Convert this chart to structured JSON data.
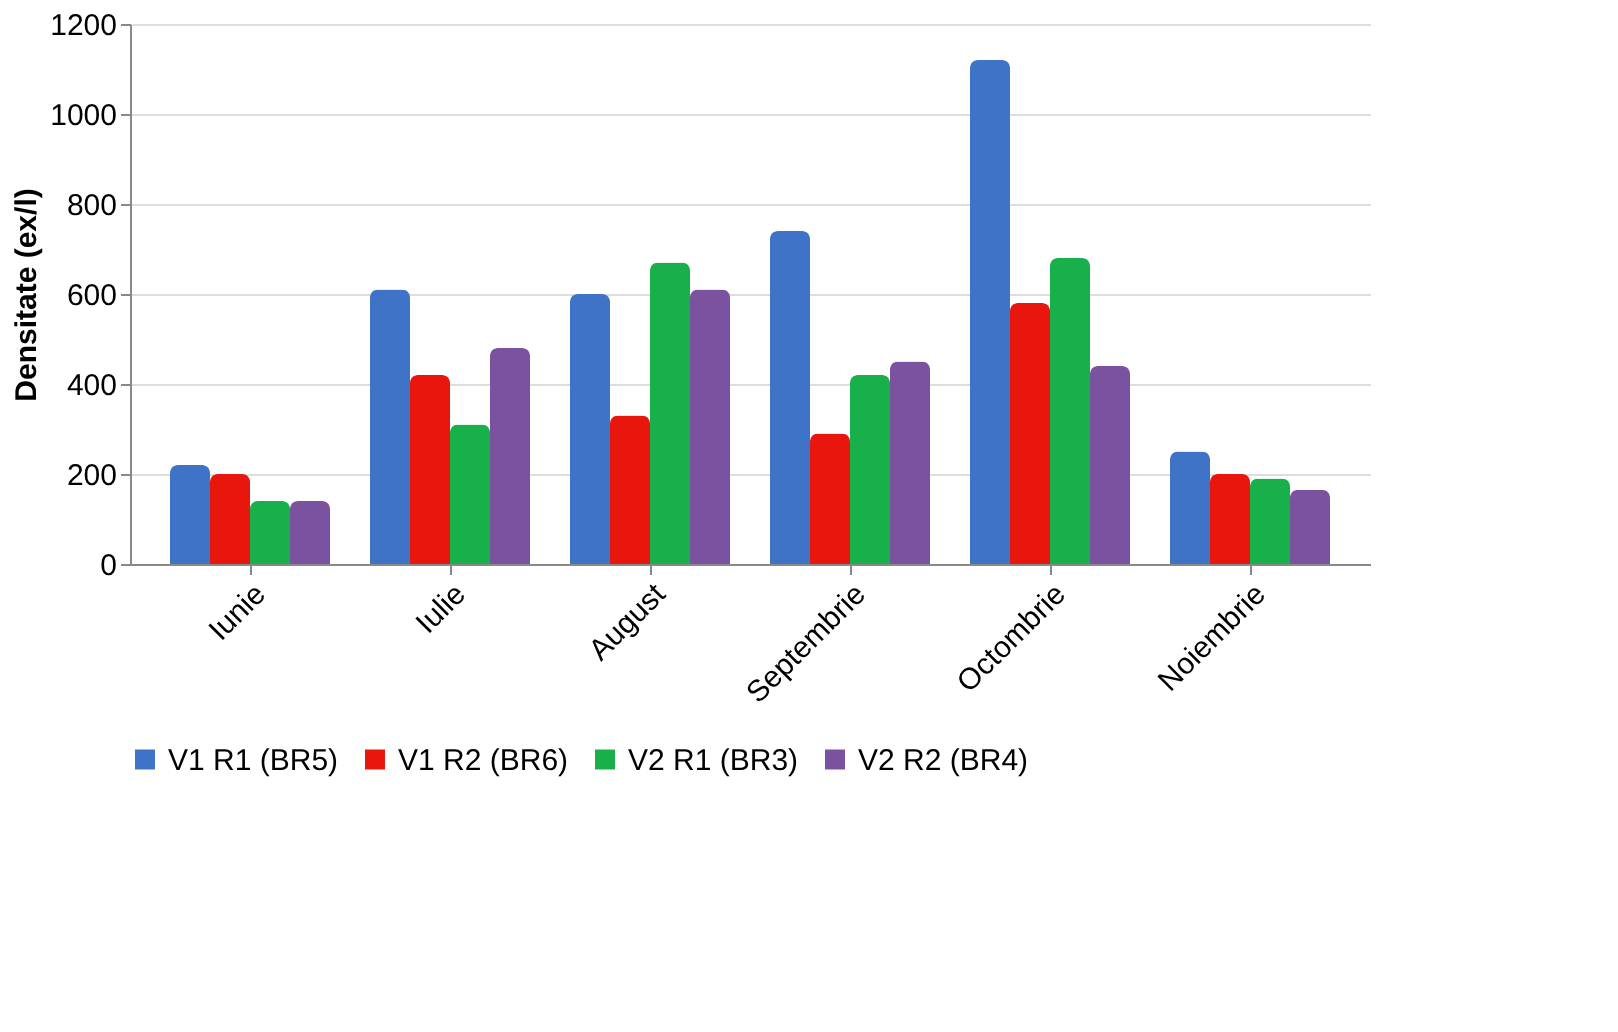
{
  "chart_data": {
    "type": "bar",
    "ylabel": "Densitate (ex/l)",
    "categories": [
      "Iunie",
      "Iulie",
      "August",
      "Septembrie",
      "Octombrie",
      "Noiembrie"
    ],
    "series": [
      {
        "name": "V1 R1 (BR5)",
        "color": "#3f73c8",
        "values": [
          220,
          610,
          600,
          740,
          1120,
          250
        ]
      },
      {
        "name": "V1 R2 (BR6)",
        "color": "#e8160c",
        "values": [
          200,
          420,
          330,
          290,
          580,
          200
        ]
      },
      {
        "name": "V2 R1 (BR3)",
        "color": "#17b04a",
        "values": [
          140,
          310,
          670,
          420,
          680,
          190
        ]
      },
      {
        "name": "V2 R2 (BR4)",
        "color": "#7a52a0",
        "values": [
          140,
          480,
          610,
          450,
          440,
          165
        ]
      }
    ],
    "ylim": [
      0,
      1200
    ],
    "yticks": [
      0,
      200,
      400,
      600,
      800,
      1000,
      1200
    ],
    "grid": "y",
    "legend": "bottom"
  }
}
